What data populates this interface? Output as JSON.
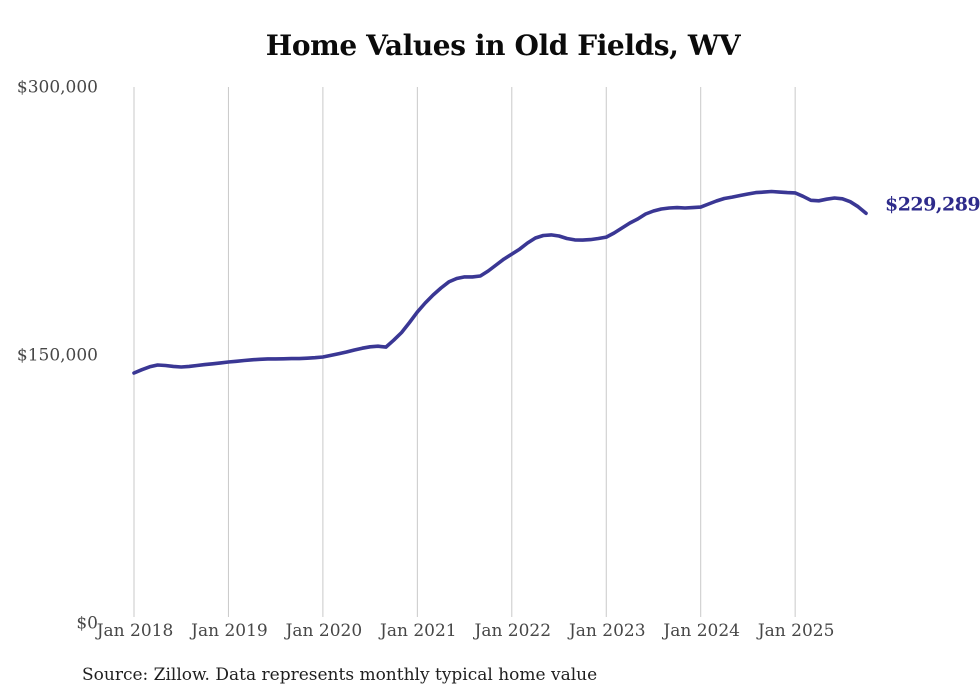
{
  "page": {
    "source_note": "Source: Zillow. Data represents monthly typical home value"
  },
  "chart_data": {
    "type": "line",
    "title": "Home Values in Old Fields, WV",
    "xlabel": "",
    "ylabel": "",
    "x_start": "Jan 2018",
    "x_end": "Oct 2025",
    "frequency": "monthly",
    "x_tick_labels": [
      "Jan 2018",
      "Jan 2019",
      "Jan 2020",
      "Jan 2021",
      "Jan 2022",
      "Jan 2023",
      "Jan 2024",
      "Jan 2025"
    ],
    "y_ticks": [
      {
        "label": "$300,000",
        "value": 300000
      },
      {
        "label": "$150,000",
        "value": 150000
      },
      {
        "label": "$0",
        "value": 0
      }
    ],
    "ylim": [
      0,
      300000
    ],
    "grid": "vertical-only",
    "legend_position": "none",
    "series": [
      {
        "name": "Typical home value",
        "values": [
          139900,
          141800,
          143400,
          144400,
          144100,
          143600,
          143300,
          143600,
          144100,
          144600,
          145100,
          145600,
          146100,
          146500,
          146900,
          147300,
          147600,
          147800,
          147800,
          147900,
          148000,
          148000,
          148200,
          148500,
          148900,
          149800,
          150700,
          151700,
          152800,
          153800,
          154600,
          154900,
          154400,
          158300,
          162600,
          168200,
          174100,
          179100,
          183600,
          187500,
          190900,
          192800,
          193700,
          193700,
          194200,
          197000,
          200400,
          203700,
          206500,
          209300,
          212700,
          215500,
          216900,
          217200,
          216600,
          215200,
          214400,
          214300,
          214600,
          215200,
          216000,
          218300,
          221100,
          223900,
          226100,
          228900,
          230600,
          231700,
          232300,
          232500,
          232300,
          232500,
          232800,
          234500,
          236200,
          237600,
          238400,
          239300,
          240100,
          240900,
          241200,
          241500,
          241200,
          240900,
          240700,
          238800,
          236600,
          236300,
          237200,
          237900,
          237400,
          235800,
          233000,
          229289
        ]
      }
    ],
    "end_label": {
      "text": "$229,289",
      "value": 229289
    },
    "colors": {
      "line": "#3a3794",
      "end_label": "#2e2b8b",
      "grid": "#c9c9c9",
      "axis_labels": "#474747"
    }
  }
}
